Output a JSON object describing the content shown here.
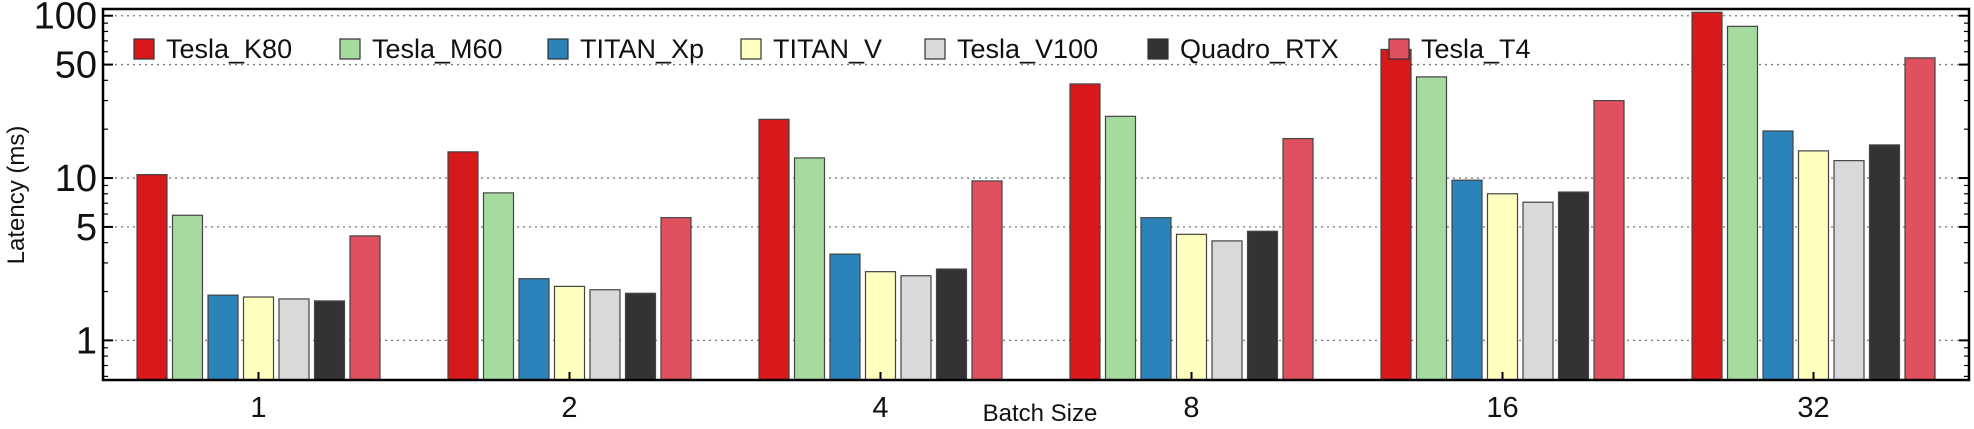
{
  "chart_data": {
    "type": "bar",
    "title": "",
    "xlabel": "Batch Size",
    "ylabel": "Latency (ms)",
    "yscale": "log",
    "ylim": [
      0.57,
      110
    ],
    "yticks": [
      1,
      5,
      10,
      50,
      100
    ],
    "ytick_labels": [
      "1",
      "5",
      "10",
      "50",
      "100"
    ],
    "grid": "horizontal dotted",
    "legend_position": "top-left",
    "categories": [
      "1",
      "2",
      "4",
      "8",
      "16",
      "32"
    ],
    "series": [
      {
        "name": "Tesla_K80",
        "color": "#d7191c",
        "values": [
          10.5,
          14.5,
          23,
          38,
          62,
          105
        ]
      },
      {
        "name": "Tesla_M60",
        "color": "#a6dba0",
        "values": [
          5.9,
          8.1,
          13.3,
          24,
          42,
          86
        ]
      },
      {
        "name": "TITAN_Xp",
        "color": "#2b83ba",
        "values": [
          1.9,
          2.4,
          3.4,
          5.7,
          9.7,
          19.5
        ]
      },
      {
        "name": "TITAN_V",
        "color": "#ffffbf",
        "values": [
          1.85,
          2.15,
          2.65,
          4.5,
          8.0,
          14.7
        ]
      },
      {
        "name": "Tesla_V100",
        "color": "#d9d9d9",
        "values": [
          1.8,
          2.05,
          2.5,
          4.1,
          7.1,
          12.8
        ]
      },
      {
        "name": "Quadro_RTX",
        "color": "#333333",
        "values": [
          1.75,
          1.95,
          2.75,
          4.7,
          8.2,
          16.0
        ]
      },
      {
        "name": "Tesla_T4",
        "color": "#e0505e",
        "values": [
          4.4,
          5.7,
          9.6,
          17.5,
          30,
          55
        ]
      }
    ]
  }
}
